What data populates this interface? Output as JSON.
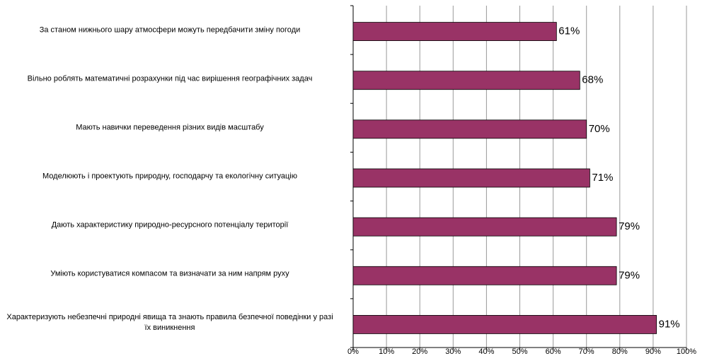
{
  "chart_data": {
    "type": "bar",
    "orientation": "horizontal",
    "categories": [
      "За станом нижнього шару атмосфери можуть передбачити зміну погоди",
      "Вільно роблять математичні розрахунки під час вирішення географічних задач",
      "Мають навички переведення різних видів масштабу",
      "Моделюють і проектують природну, господарчу та екологічну ситуацію",
      "Дають характеристику природно-ресурсного потенціалу території",
      "Уміють користуватися компасом та визначати за ним напрям руху",
      "Характеризують небезпечні природні явища та знають правила безпечної поведінки у разі їх виникнення"
    ],
    "values": [
      61,
      68,
      70,
      71,
      79,
      79,
      91
    ],
    "value_labels": [
      "61%",
      "68%",
      "70%",
      "71%",
      "79%",
      "79%",
      "91%"
    ],
    "color": "#993366",
    "xlim": [
      0,
      100
    ],
    "xticks": [
      {
        "value": 0,
        "label": "0%"
      },
      {
        "value": 10,
        "label": "10%"
      },
      {
        "value": 20,
        "label": "20%"
      },
      {
        "value": 30,
        "label": "30%"
      },
      {
        "value": 40,
        "label": "40%"
      },
      {
        "value": 50,
        "label": "50%"
      },
      {
        "value": 60,
        "label": "60%"
      },
      {
        "value": 70,
        "label": "70%"
      },
      {
        "value": 80,
        "label": "80%"
      },
      {
        "value": 90,
        "label": "90%"
      },
      {
        "value": 100,
        "label": "100%"
      }
    ],
    "grid": true
  }
}
